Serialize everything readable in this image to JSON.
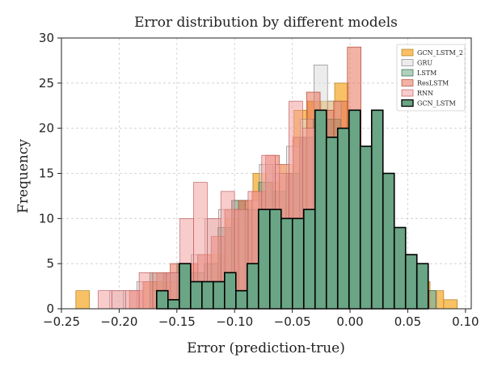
{
  "chart_data": {
    "type": "bar",
    "title": "Error distribution by different models",
    "xlabel": "Error (prediction-true)",
    "ylabel": "Frequency",
    "xlim": [
      -0.25,
      0.105
    ],
    "ylim": [
      0,
      30
    ],
    "xticks": [
      "−0.25",
      "−0.20",
      "−0.15",
      "−0.10",
      "−0.05",
      "0.00",
      "0.05",
      "0.10"
    ],
    "xtick_values": [
      -0.25,
      -0.2,
      -0.15,
      -0.1,
      -0.05,
      0.0,
      0.05,
      0.1
    ],
    "yticks": [
      "0",
      "5",
      "10",
      "15",
      "20",
      "25",
      "30"
    ],
    "ytick_values": [
      0,
      5,
      10,
      15,
      20,
      25,
      30
    ],
    "grid": true,
    "legend_position": "top-right",
    "series": [
      {
        "name": "GCN_LSTM_2",
        "color": "#f5a623",
        "opacity": 0.7,
        "edge": "#b07a1a",
        "bin_width": 0.0118,
        "x": [
          -0.2316,
          -0.1726,
          -0.1608,
          -0.149,
          -0.1372,
          -0.1254,
          -0.1136,
          -0.1018,
          -0.09,
          -0.0782,
          -0.0664,
          -0.0546,
          -0.0428,
          -0.031,
          -0.0192,
          -0.0074,
          0.0044,
          0.0162,
          0.028,
          0.0398,
          0.0516,
          0.0634,
          0.0752,
          0.087
        ],
        "y": [
          2,
          3,
          3,
          3,
          5,
          3,
          6,
          10,
          12,
          15,
          14,
          16,
          22,
          23,
          23,
          25,
          15,
          13,
          9,
          5,
          4,
          3,
          2,
          1
        ]
      },
      {
        "name": "GRU",
        "color": "#dddddd",
        "opacity": 0.55,
        "edge": "#888888",
        "bin_width": 0.0118,
        "x": [
          -0.2024,
          -0.1906,
          -0.1788,
          -0.167,
          -0.1552,
          -0.1434,
          -0.1316,
          -0.1198,
          -0.108,
          -0.0962,
          -0.0844,
          -0.0726,
          -0.0608,
          -0.049,
          -0.0372,
          -0.0254,
          -0.0136,
          -0.0018,
          0.01,
          0.0218,
          0.0336,
          0.0454,
          0.0572,
          0.069
        ],
        "y": [
          2,
          2,
          3,
          2,
          4,
          3,
          6,
          10,
          11,
          12,
          12,
          16,
          15,
          18,
          21,
          27,
          23,
          20,
          17,
          13,
          9,
          6,
          4,
          2
        ]
      },
      {
        "name": "LSTM",
        "color": "#4f9a6b",
        "opacity": 0.45,
        "edge": "#2f6b4a",
        "bin_width": 0.0118,
        "x": [
          -0.1676,
          -0.1558,
          -0.144,
          -0.1322,
          -0.1204,
          -0.1086,
          -0.0968,
          -0.085,
          -0.0732,
          -0.0614,
          -0.0496,
          -0.0378,
          -0.026,
          -0.0142,
          -0.0024,
          0.0094,
          0.0212,
          0.033,
          0.0448,
          0.0566,
          0.0684
        ],
        "y": [
          4,
          4,
          5,
          4,
          5,
          9,
          12,
          11,
          14,
          13,
          15,
          19,
          21,
          21,
          19,
          15,
          13,
          9,
          6,
          3,
          2
        ]
      },
      {
        "name": "ResLSTM",
        "color": "#e8735a",
        "opacity": 0.55,
        "edge": "#b14a36",
        "bin_width": 0.0118,
        "x": [
          -0.1852,
          -0.1734,
          -0.1616,
          -0.1498,
          -0.138,
          -0.1262,
          -0.1144,
          -0.1026,
          -0.0908,
          -0.079,
          -0.0672,
          -0.0554,
          -0.0436,
          -0.0318,
          -0.02,
          -0.0082,
          0.0036,
          0.0154,
          0.0272,
          0.039,
          0.0508,
          0.0626
        ],
        "y": [
          2,
          3,
          4,
          5,
          5,
          6,
          8,
          11,
          12,
          13,
          17,
          15,
          19,
          24,
          22,
          23,
          29,
          13,
          12,
          6,
          5,
          2
        ]
      },
      {
        "name": "RNN",
        "color": "#f4a3a3",
        "opacity": 0.55,
        "edge": "#c06060",
        "bin_width": 0.0118,
        "x": [
          -0.2122,
          -0.2004,
          -0.1886,
          -0.1768,
          -0.165,
          -0.1532,
          -0.1414,
          -0.1296,
          -0.1178,
          -0.106,
          -0.0942,
          -0.0824,
          -0.0706,
          -0.0588,
          -0.047,
          -0.0352,
          -0.0234,
          -0.0116,
          0.0002,
          0.012,
          0.0238
        ],
        "y": [
          2,
          2,
          2,
          4,
          4,
          4,
          10,
          14,
          10,
          13,
          11,
          13,
          17,
          16,
          23,
          20,
          19,
          17,
          14,
          13,
          9
        ]
      },
      {
        "name": "GCN_LSTM",
        "color": "#6aa585",
        "opacity": 1.0,
        "edge": "#000000",
        "bin_width": 0.0098,
        "x": [
          -0.1626,
          -0.1528,
          -0.143,
          -0.1332,
          -0.1234,
          -0.1136,
          -0.1038,
          -0.094,
          -0.0842,
          -0.0744,
          -0.0646,
          -0.0548,
          -0.045,
          -0.0352,
          -0.0254,
          -0.0156,
          -0.0058,
          0.004,
          0.0138,
          0.0236,
          0.0334,
          0.0432,
          0.053,
          0.0628
        ],
        "y": [
          2,
          1,
          5,
          3,
          3,
          3,
          4,
          2,
          5,
          11,
          11,
          10,
          10,
          11,
          22,
          19,
          20,
          22,
          18,
          22,
          15,
          9,
          6,
          5
        ]
      }
    ]
  }
}
